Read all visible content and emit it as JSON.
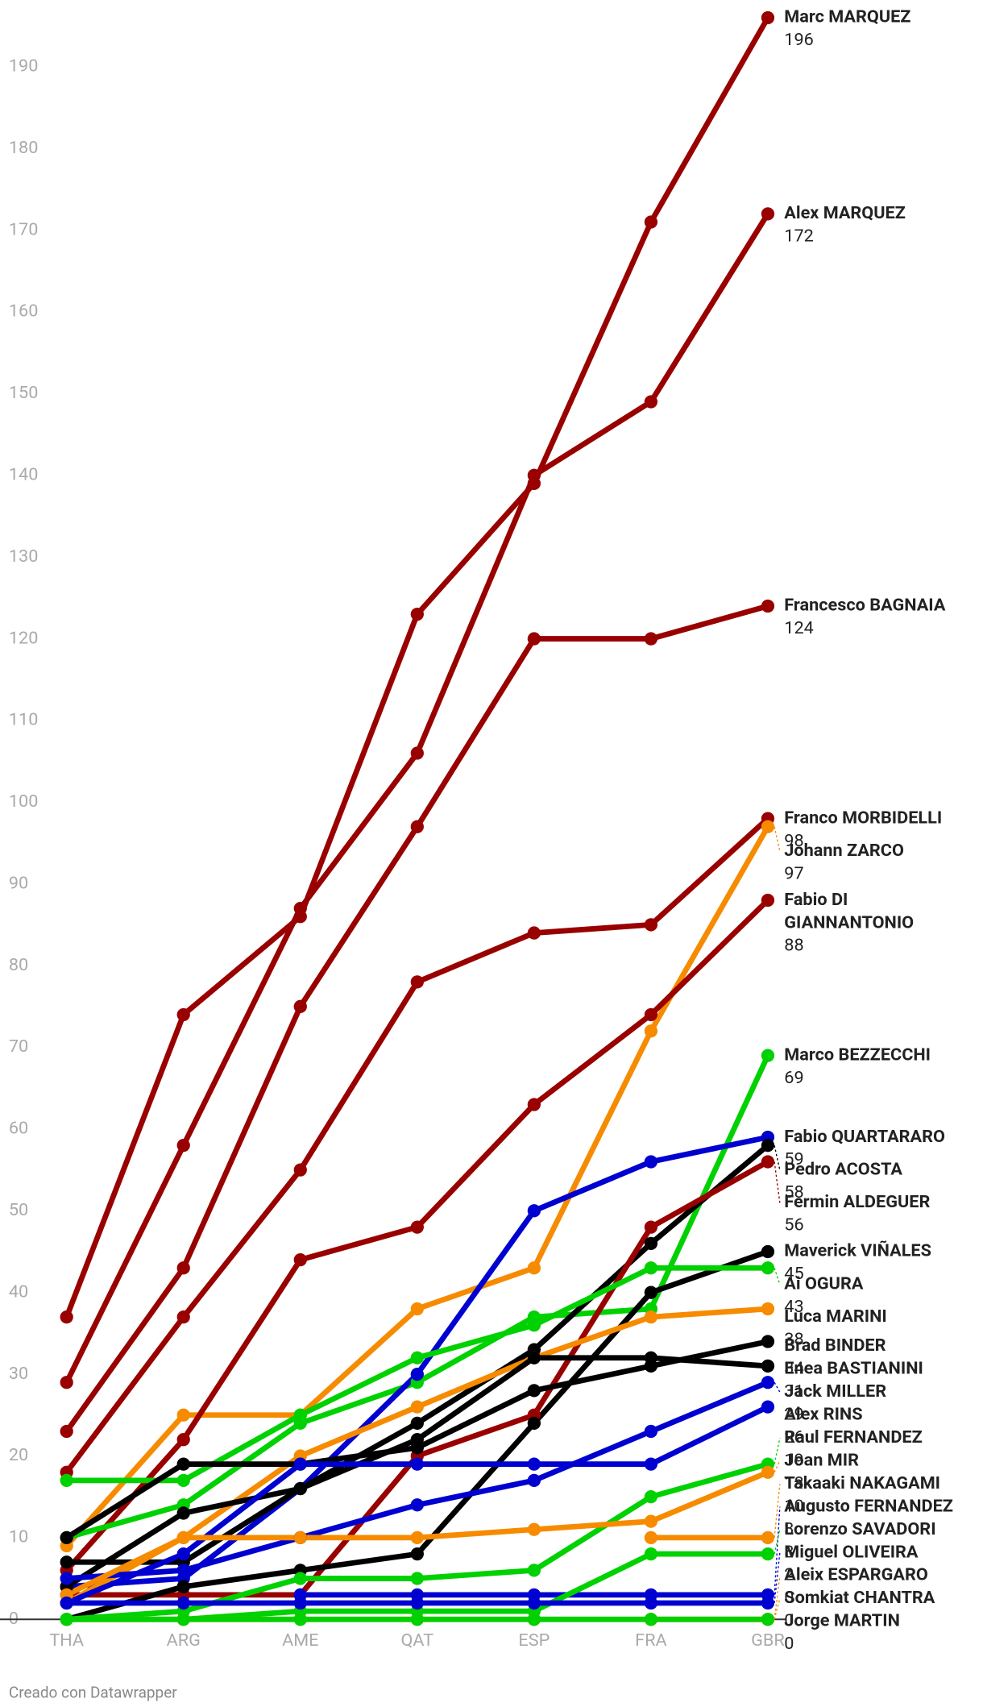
{
  "chart_data": {
    "type": "line",
    "categories": [
      "THA",
      "ARG",
      "AME",
      "QAT",
      "ESP",
      "FRA",
      "GBR"
    ],
    "ylim": [
      0,
      196
    ],
    "yticks": [
      0,
      10,
      20,
      30,
      40,
      50,
      60,
      70,
      80,
      90,
      100,
      110,
      120,
      130,
      140,
      150,
      160,
      170,
      180,
      190
    ],
    "grid": false,
    "series": [
      {
        "name": "Marc MARQUEZ",
        "color": "#990000",
        "values": [
          37,
          74,
          86,
          123,
          139,
          171,
          196
        ]
      },
      {
        "name": "Alex MARQUEZ",
        "color": "#990000",
        "values": [
          29,
          58,
          87,
          106,
          140,
          149,
          172
        ]
      },
      {
        "name": "Francesco BAGNAIA",
        "color": "#990000",
        "values": [
          23,
          43,
          75,
          97,
          120,
          120,
          124
        ]
      },
      {
        "name": "Franco MORBIDELLI",
        "color": "#990000",
        "values": [
          18,
          37,
          55,
          78,
          84,
          85,
          98
        ]
      },
      {
        "name": "Johann ZARCO",
        "color": "#f68b00",
        "values": [
          9,
          25,
          25,
          38,
          43,
          72,
          97
        ]
      },
      {
        "name": "Fabio DI GIANNANTONIO",
        "color": "#990000",
        "values": [
          6,
          22,
          44,
          48,
          63,
          74,
          88
        ]
      },
      {
        "name": "Marco BEZZECCHI",
        "color": "#00d100",
        "values": [
          10,
          14,
          24,
          29,
          37,
          38,
          69
        ]
      },
      {
        "name": "Fabio QUARTARARO",
        "color": "#0000d0",
        "values": [
          4,
          5,
          16,
          30,
          50,
          56,
          59
        ]
      },
      {
        "name": "Pedro ACOSTA",
        "color": "#000000",
        "values": [
          7,
          7,
          16,
          24,
          33,
          46,
          58
        ]
      },
      {
        "name": "Fermin ALDEGUER",
        "color": "#990000",
        "values": [
          3,
          3,
          3,
          20,
          25,
          48,
          56
        ]
      },
      {
        "name": "Maverick VIÑALES",
        "color": "#000000",
        "values": [
          0,
          4,
          6,
          8,
          24,
          40,
          45
        ]
      },
      {
        "name": "Ai OGURA",
        "color": "#00d100",
        "values": [
          17,
          17,
          25,
          32,
          36,
          43,
          43
        ]
      },
      {
        "name": "Luca MARINI",
        "color": "#f68b00",
        "values": [
          2,
          10,
          20,
          26,
          32,
          37,
          38
        ]
      },
      {
        "name": "Brad BINDER",
        "color": "#000000",
        "values": [
          10,
          19,
          19,
          21,
          28,
          31,
          34
        ]
      },
      {
        "name": "Enea BASTIANINI",
        "color": "#000000",
        "values": [
          4,
          13,
          16,
          22,
          32,
          32,
          31
        ]
      },
      {
        "name": "Jack MILLER",
        "color": "#0000d0",
        "values": [
          5,
          6,
          10,
          14,
          17,
          23,
          29
        ]
      },
      {
        "name": "Alex RINS",
        "color": "#0000d0",
        "values": [
          2,
          8,
          19,
          19,
          19,
          19,
          26
        ]
      },
      {
        "name": "Raul FERNANDEZ",
        "color": "#00d100",
        "values": [
          0,
          1,
          5,
          5,
          6,
          15,
          19
        ]
      },
      {
        "name": "Joan MIR",
        "color": "#f68b00",
        "values": [
          3,
          10,
          10,
          10,
          11,
          12,
          18
        ]
      },
      {
        "name": "Takaaki NAKAGAMI",
        "color": "#f68b00",
        "values": [
          null,
          null,
          null,
          null,
          null,
          10,
          10
        ]
      },
      {
        "name": "Augusto FERNANDEZ",
        "color": "#0000d0",
        "values": [
          null,
          null,
          3,
          3,
          3,
          3,
          3
        ]
      },
      {
        "name": "Lorenzo SAVADORI",
        "color": "#00d100",
        "values": [
          0,
          0,
          1,
          1,
          1,
          8,
          8
        ]
      },
      {
        "name": "Miguel OLIVEIRA",
        "color": "#0000d0",
        "values": [
          2,
          2,
          2,
          2,
          2,
          2,
          2
        ]
      },
      {
        "name": "Aleix ESPARGARO",
        "color": "#f68b00",
        "values": [
          null,
          null,
          null,
          null,
          null,
          0,
          0
        ]
      },
      {
        "name": "Somkiat CHANTRA",
        "color": "#f68b00",
        "values": [
          0,
          0,
          0,
          0,
          0,
          0,
          0
        ]
      },
      {
        "name": "Jorge MARTIN",
        "color": "#00d100",
        "values": [
          0,
          0,
          0,
          0,
          0,
          0,
          0
        ]
      }
    ]
  },
  "footer": "Creado con Datawrapper"
}
